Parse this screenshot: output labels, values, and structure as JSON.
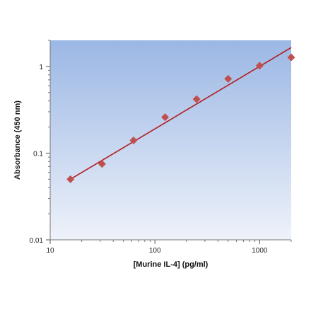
{
  "chart_data": {
    "type": "scatter",
    "xlabel": "[Murine IL-4] (pg/ml)",
    "ylabel": "Absorbance (450 nm)",
    "x_scale": "log",
    "y_scale": "log",
    "xlim": [
      10,
      2000
    ],
    "ylim": [
      0.01,
      2
    ],
    "x_ticks": [
      10,
      100,
      1000
    ],
    "x_tick_labels": [
      "10",
      "100",
      "1000"
    ],
    "y_ticks": [
      0.01,
      0.1,
      1
    ],
    "y_tick_labels": [
      "0.01",
      "0.1",
      "1"
    ],
    "grid": false,
    "series": [
      {
        "type": "scatter",
        "marker": "diamond",
        "x": [
          15.6,
          31.25,
          62.5,
          125,
          250,
          500,
          1000,
          2000
        ],
        "y": [
          0.05,
          0.075,
          0.14,
          0.26,
          0.42,
          0.72,
          1.02,
          1.27
        ]
      },
      {
        "type": "line",
        "x": [
          15.6,
          2000
        ],
        "y": [
          0.05,
          1.65
        ]
      }
    ],
    "colors": {
      "marker": "#c0504d",
      "line": "#b01e23",
      "plot_bg_top": "#9bb7e4",
      "plot_bg_bottom": "#eef2fa"
    }
  }
}
